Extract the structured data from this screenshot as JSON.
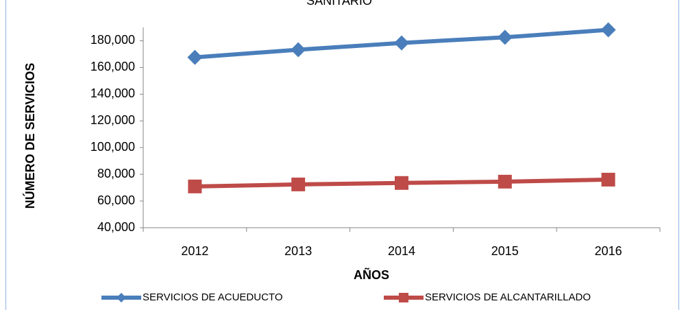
{
  "chart_data": {
    "type": "line",
    "title": "SANITARIO",
    "x_label": "AÑOS",
    "y_label": "NÚMERO DE SERVICIOS",
    "categories": [
      "2012",
      "2013",
      "2014",
      "2015",
      "2016"
    ],
    "series": [
      {
        "name": "SERVICIOS DE ACUEDUCTO",
        "color": "#4a7ebb",
        "marker": "diamond",
        "values": [
          167600,
          173300,
          178400,
          182600,
          188200
        ]
      },
      {
        "name": "SERVICIOS DE ALCANTARILLADO",
        "color": "#be4b48",
        "marker": "square",
        "values": [
          70900,
          72400,
          73500,
          74500,
          76000
        ]
      }
    ],
    "ylim": [
      40000,
      190000
    ],
    "yticks": [
      {
        "value": 40000,
        "label": "40,000"
      },
      {
        "value": 60000,
        "label": "60,000"
      },
      {
        "value": 80000,
        "label": "80,000"
      },
      {
        "value": 100000,
        "label": "100,000"
      },
      {
        "value": 120000,
        "label": "120,000"
      },
      {
        "value": 140000,
        "label": "140,000"
      },
      {
        "value": 160000,
        "label": "160,000"
      },
      {
        "value": 180000,
        "label": "180,000"
      }
    ],
    "grid": false,
    "legend": "bottom"
  }
}
